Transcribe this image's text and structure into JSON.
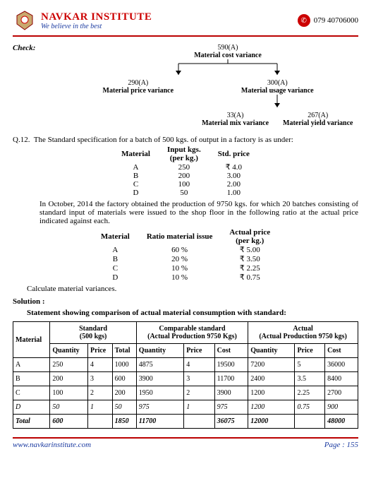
{
  "header": {
    "institute_name": "NAVKAR INSTITUTE",
    "tagline": "We believe in the best",
    "phone": "079 40706000"
  },
  "check": {
    "label": "Check:",
    "root": "590(A)",
    "root_label": "Material cost variance",
    "left": "290(A)",
    "left_label": "Material price variance",
    "right": "300(A)",
    "right_label": "Material usage variance",
    "right_l": "33(A)",
    "right_l_label": "Material mix variance",
    "right_r": "267(A)",
    "right_r_label": "Material yield variance"
  },
  "q12": {
    "prefix": "Q.12.",
    "text": "The Standard specification for a batch of 500 kgs. of output in a factory is as under:",
    "head_material": "Material",
    "head_input": "Input kgs. (per kg.)",
    "head_price": "Std. price",
    "rows": [
      {
        "m": "A",
        "kg": "250",
        "p": "₹ 4.0"
      },
      {
        "m": "B",
        "kg": "200",
        "p": "3.00"
      },
      {
        "m": "C",
        "kg": "100",
        "p": "2.00"
      },
      {
        "m": "D",
        "kg": "50",
        "p": "1.00"
      }
    ],
    "para1": "In October, 2014 the factory obtained the production of 9750 kgs. for which 20 batches consisting of standard input of materials were issued to the shop floor in the following ratio at the actual price indicated against each.",
    "head2_material": "Material",
    "head2_ratio": "Ratio material issue",
    "head2_price": "Actual price (per kg.)",
    "rows2": [
      {
        "m": "A",
        "r": "60 %",
        "p": "₹ 5.00"
      },
      {
        "m": "B",
        "r": "20 %",
        "p": "₹ 3.50"
      },
      {
        "m": "C",
        "r": "10 %",
        "p": "₹ 2.25"
      },
      {
        "m": "D",
        "r": "10 %",
        "p": "₹ 0.75"
      }
    ],
    "calc": "Calculate material variances."
  },
  "solution": {
    "label": "Solution :",
    "statement": "Statement showing comparison of actual material consumption with standard:"
  },
  "main_table": {
    "h_material": "Material",
    "h_standard": "Standard (500 kgs)",
    "h_comparable": "Comparable standard (Actual Production 9750 Kgs)",
    "h_actual": "Actual (Actual Production 9750 kgs)",
    "h_qty": "Quantity",
    "h_price": "Price",
    "h_total": "Total",
    "h_cost": "Cost",
    "rows": [
      {
        "m": "A",
        "sq": "250",
        "sp": "4",
        "st": "1000",
        "cq": "4875",
        "cp": "4",
        "cc": "19500",
        "aq": "7200",
        "ap": "5",
        "ac": "36000"
      },
      {
        "m": "B",
        "sq": "200",
        "sp": "3",
        "st": "600",
        "cq": "3900",
        "cp": "3",
        "cc": "11700",
        "aq": "2400",
        "ap": "3.5",
        "ac": "8400"
      },
      {
        "m": "C",
        "sq": "100",
        "sp": "2",
        "st": "200",
        "cq": "1950",
        "cp": "2",
        "cc": "3900",
        "aq": "1200",
        "ap": "2.25",
        "ac": "2700"
      },
      {
        "m": "D",
        "sq": "50",
        "sp": "1",
        "st": "50",
        "cq": "975",
        "cp": "1",
        "cc": "975",
        "aq": "1200",
        "ap": "0.75",
        "ac": "900",
        "ital": true
      }
    ],
    "total": {
      "m": "Total",
      "sq": "600",
      "sp": "",
      "st": "1850",
      "cq": "11700",
      "cp": "",
      "cc": "36075",
      "aq": "12000",
      "ap": "",
      "ac": "48000"
    }
  },
  "footer": {
    "site": "www.navkarinstitute.com",
    "page": "Page : 155"
  }
}
